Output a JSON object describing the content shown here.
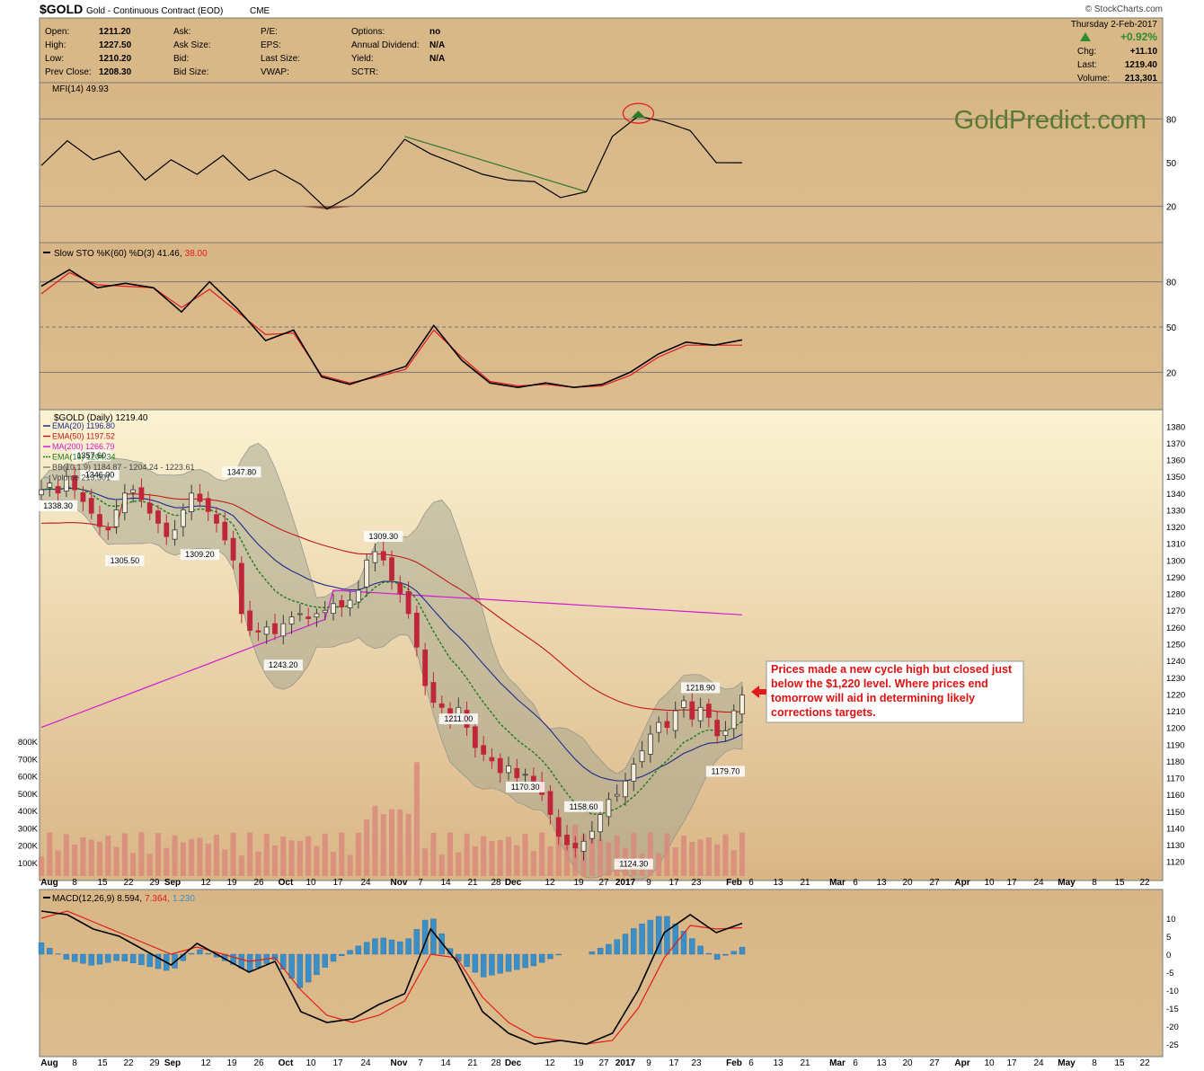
{
  "header": {
    "symbol": "$GOLD",
    "name": "Gold - Continuous Contract (EOD)",
    "exchange": "CME",
    "watermark": "© StockCharts.com",
    "date": "Thursday  2-Feb-2017",
    "change_pct": "+0.92%",
    "quote_left": [
      {
        "label": "Open:",
        "value": "1211.20"
      },
      {
        "label": "High:",
        "value": "1227.50"
      },
      {
        "label": "Low:",
        "value": "1210.20"
      },
      {
        "label": "Prev Close:",
        "value": "1208.30"
      }
    ],
    "quote_mid": [
      "Ask:",
      "Ask Size:",
      "Bid:",
      "Bid Size:"
    ],
    "quote_mid2": [
      "P/E:",
      "EPS:",
      "Last Size:",
      "VWAP:"
    ],
    "quote_right": [
      {
        "label": "Options:",
        "value": "no"
      },
      {
        "label": "Annual Dividend:",
        "value": "N/A"
      },
      {
        "label": "Yield:",
        "value": "N/A"
      },
      {
        "label": "SCTR:",
        "value": ""
      }
    ],
    "quote_far": [
      {
        "label": "Chg:",
        "value": "+11.10"
      },
      {
        "label": "Last:",
        "value": "1219.40"
      },
      {
        "label": "Volume:",
        "value": "213,301"
      }
    ]
  },
  "colors": {
    "panel_bg": "#dab98a",
    "price_bg_top": "#fbf3d2",
    "price_bg_bottom": "#d9b585",
    "ema20": "#1d2a8c",
    "ema50": "#c21a1a",
    "ma200": "#d21ad2",
    "ema10": "#1f7a1f",
    "bband": "#a8a890",
    "candle_up": "#3a3a3a",
    "candle_down": "#c0263a",
    "volume": "#d9877a",
    "macd_hist": "#3a8fc8",
    "signal": "#e31a1a",
    "brand": "#5a7a32"
  },
  "chart_data": [
    {
      "type": "line",
      "panel": "MFI",
      "label": "MFI(14) 49.93",
      "brand": "GoldPredict.com",
      "ylim": [
        0,
        100
      ],
      "yticks": [
        20,
        50,
        80
      ],
      "grid": [
        20,
        80
      ],
      "x": [
        "Aug 1",
        "Aug 8",
        "Aug 15",
        "Aug 22",
        "Aug 29",
        "Sep 6",
        "Sep 12",
        "Sep 19",
        "Sep 26",
        "Oct 3",
        "Oct 10",
        "Oct 17",
        "Oct 24",
        "Oct 31",
        "Nov 7",
        "Nov 14",
        "Nov 21",
        "Nov 28",
        "Dec 5",
        "Dec 12",
        "Dec 19",
        "Dec 27",
        "Jan 3",
        "Jan 9",
        "Jan 17",
        "Jan 23",
        "Jan 30",
        "Feb 2"
      ],
      "values": [
        48,
        65,
        52,
        58,
        38,
        52,
        42,
        55,
        38,
        45,
        35,
        18,
        28,
        44,
        66,
        56,
        49,
        42,
        38,
        37,
        26,
        30,
        68,
        82,
        78,
        72,
        50,
        49.93
      ]
    },
    {
      "type": "line",
      "panel": "Slow STO",
      "label": "Slow STO %K(60) %D(3) 41.46,",
      "label_value": "38.00",
      "ylim": [
        0,
        100
      ],
      "yticks": [
        20,
        50,
        80
      ],
      "grid": [
        20,
        80
      ],
      "dashed": [
        50
      ],
      "series": [
        {
          "name": "%K",
          "values": [
            77,
            88,
            76,
            79,
            76,
            60,
            80,
            62,
            41,
            48,
            17,
            12,
            18,
            24,
            51,
            28,
            13,
            10,
            13,
            10,
            12,
            20,
            32,
            40,
            38,
            41.46
          ]
        },
        {
          "name": "%D",
          "values": [
            72,
            86,
            78,
            77,
            76,
            63,
            75,
            60,
            45,
            46,
            18,
            13,
            17,
            22,
            48,
            30,
            14,
            11,
            12,
            10,
            11,
            18,
            30,
            38,
            38,
            38.0
          ]
        }
      ]
    },
    {
      "type": "candlestick",
      "panel": "Price",
      "label": "$GOLD (Daily) 1219.40",
      "ylim": [
        1115,
        1385
      ],
      "yticks": [
        1120,
        1130,
        1140,
        1150,
        1160,
        1170,
        1180,
        1190,
        1200,
        1210,
        1220,
        1230,
        1240,
        1250,
        1260,
        1270,
        1280,
        1290,
        1300,
        1310,
        1320,
        1330,
        1340,
        1350,
        1360,
        1370,
        1380
      ],
      "vol_ticks": [
        "100K",
        "200K",
        "300K",
        "400K",
        "500K",
        "600K",
        "700K",
        "800K"
      ],
      "legend": [
        {
          "text": "EMA(20) 1196.80"
        },
        {
          "text": "EMA(50) 1197.52"
        },
        {
          "text": "MA(200) 1266.79"
        },
        {
          "text": "EMA(10) 1204.34"
        },
        {
          "text": "BB(10,1.9) 1184.87 - 1204.24 - 1223.61"
        },
        {
          "text": "Volume 213,301"
        }
      ],
      "labels": [
        "1338.30",
        "1346.00",
        "1357.60",
        "1305.50",
        "1309.20",
        "1347.80",
        "1243.20",
        "1309.30",
        "1211.00",
        "1170.30",
        "1158.60",
        "1124.30",
        "1218.90",
        "1179.70"
      ],
      "close": [
        1342,
        1346,
        1340,
        1350,
        1342,
        1335,
        1328,
        1320,
        1318,
        1330,
        1340,
        1342,
        1336,
        1328,
        1322,
        1314,
        1318,
        1330,
        1340,
        1335,
        1329,
        1322,
        1312,
        1300,
        1268,
        1258,
        1257,
        1260,
        1256,
        1262,
        1266,
        1268,
        1265,
        1268,
        1270,
        1274,
        1272,
        1276,
        1282,
        1300,
        1305,
        1300,
        1288,
        1280,
        1268,
        1248,
        1225,
        1215,
        1212,
        1205,
        1212,
        1200,
        1188,
        1184,
        1180,
        1173,
        1177,
        1170,
        1172,
        1168,
        1160,
        1148,
        1135,
        1130,
        1128,
        1132,
        1138,
        1148,
        1157,
        1160,
        1168,
        1178,
        1186,
        1196,
        1203,
        1200,
        1210,
        1216,
        1205,
        1212,
        1206,
        1195,
        1198,
        1210,
        1219.4
      ],
      "annotation": "Prices made a new cycle high but closed just below the $1,220 level. Where prices end tomorrow will aid in determining likely corrections targets."
    },
    {
      "type": "line",
      "panel": "MACD",
      "label": "MACD(12,26,9) 8.594,",
      "label_signal": "7.364,",
      "label_hist": "1.230",
      "ylim": [
        -27,
        14
      ],
      "yticks": [
        -25,
        -20,
        -15,
        -10,
        -5,
        0,
        5,
        10
      ],
      "series": [
        {
          "name": "MACD",
          "values": [
            12,
            11,
            7,
            5,
            1,
            -3,
            3,
            -1,
            -5,
            -2,
            -16,
            -19,
            -18,
            -14,
            -11,
            7,
            -2,
            -16,
            -22,
            -25,
            -24,
            -25,
            -22,
            -10,
            6,
            11,
            6,
            8.594
          ]
        },
        {
          "name": "Signal",
          "values": [
            10,
            12,
            9,
            6,
            3,
            0,
            2,
            0,
            -2,
            -1,
            -10,
            -17,
            -19,
            -17,
            -13,
            0,
            -1,
            -12,
            -19,
            -23,
            -24,
            -25,
            -24,
            -15,
            -1,
            8,
            7,
            7.364
          ]
        }
      ]
    }
  ],
  "x_axis": {
    "labels": [
      {
        "t": "Aug",
        "x": 55,
        "bold": true
      },
      {
        "t": "8",
        "x": 83
      },
      {
        "t": "15",
        "x": 114
      },
      {
        "t": "22",
        "x": 143
      },
      {
        "t": "29",
        "x": 172
      },
      {
        "t": "Sep",
        "x": 192,
        "bold": true
      },
      {
        "t": "12",
        "x": 229
      },
      {
        "t": "19",
        "x": 258
      },
      {
        "t": "26",
        "x": 288
      },
      {
        "t": "Oct",
        "x": 318,
        "bold": true
      },
      {
        "t": "10",
        "x": 346
      },
      {
        "t": "17",
        "x": 376
      },
      {
        "t": "24",
        "x": 407
      },
      {
        "t": "Nov",
        "x": 444,
        "bold": true
      },
      {
        "t": "7",
        "x": 468
      },
      {
        "t": "14",
        "x": 496
      },
      {
        "t": "21",
        "x": 526
      },
      {
        "t": "28",
        "x": 552
      },
      {
        "t": "Dec",
        "x": 571,
        "bold": true
      },
      {
        "t": "12",
        "x": 612
      },
      {
        "t": "19",
        "x": 644
      },
      {
        "t": "27",
        "x": 672
      },
      {
        "t": "2017",
        "x": 696,
        "bold": true
      },
      {
        "t": "9",
        "x": 722
      },
      {
        "t": "17",
        "x": 750
      },
      {
        "t": "23",
        "x": 775
      },
      {
        "t": "Feb",
        "x": 817,
        "bold": true
      },
      {
        "t": "6",
        "x": 836
      },
      {
        "t": "13",
        "x": 866
      },
      {
        "t": "21",
        "x": 896
      },
      {
        "t": "Mar",
        "x": 932,
        "bold": true
      },
      {
        "t": "6",
        "x": 952
      },
      {
        "t": "13",
        "x": 981
      },
      {
        "t": "20",
        "x": 1010
      },
      {
        "t": "27",
        "x": 1040
      },
      {
        "t": "Apr",
        "x": 1071,
        "bold": true
      },
      {
        "t": "10",
        "x": 1101
      },
      {
        "t": "17",
        "x": 1126
      },
      {
        "t": "24",
        "x": 1156
      },
      {
        "t": "May",
        "x": 1187,
        "bold": true
      },
      {
        "t": "8",
        "x": 1218
      },
      {
        "t": "15",
        "x": 1246
      },
      {
        "t": "22",
        "x": 1274
      }
    ]
  }
}
